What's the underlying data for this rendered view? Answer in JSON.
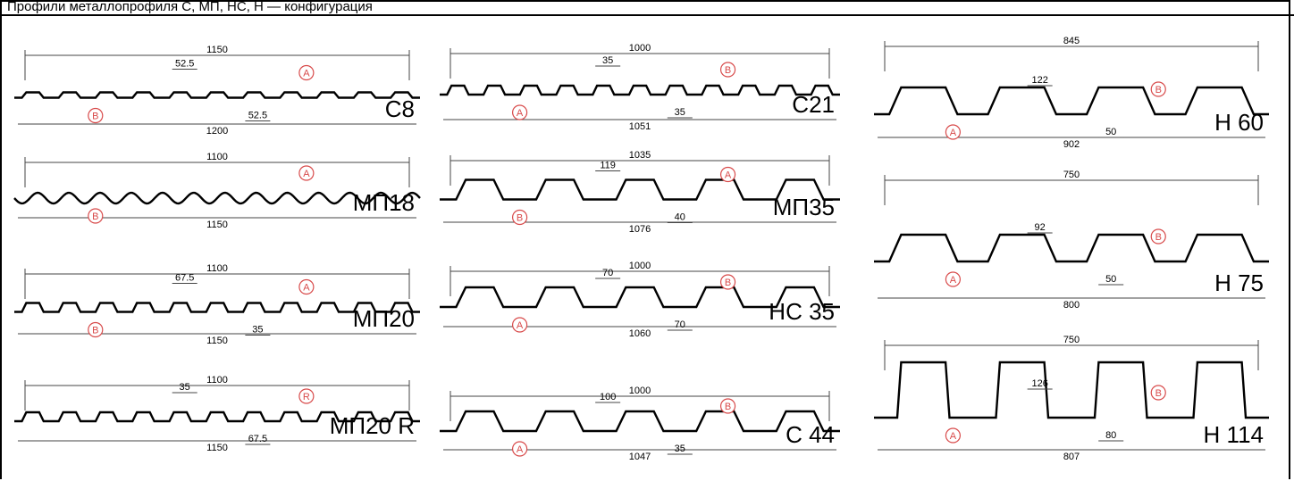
{
  "header": {
    "caption": "Профили металлопрофиля С, МП, НС, Н — конфигурация"
  },
  "colors": {
    "line": "#000000",
    "marker": "#d84a4a",
    "dim": "#444444"
  },
  "profiles": [
    {
      "name": "C8",
      "column": 0,
      "row": 0,
      "shape": "wave",
      "top_dim": "1150",
      "bottom_dim": "1200",
      "dims": [
        "52.5",
        "52.5"
      ],
      "markers": [
        "A",
        "B"
      ]
    },
    {
      "name": "МП18",
      "column": 0,
      "row": 1,
      "shape": "sine",
      "top_dim": "1100",
      "bottom_dim": "1150",
      "dims": [],
      "markers": [
        "A",
        "B"
      ]
    },
    {
      "name": "МП20",
      "column": 0,
      "row": 2,
      "shape": "trap",
      "top_dim": "1100",
      "bottom_dim": "1150",
      "dims": [
        "67.5",
        "35"
      ],
      "markers": [
        "A",
        "B"
      ]
    },
    {
      "name": "МП20 R",
      "column": 0,
      "row": 3,
      "shape": "trap",
      "top_dim": "1100",
      "bottom_dim": "1150",
      "dims": [
        "35",
        "67.5"
      ],
      "markers": [
        "R"
      ]
    },
    {
      "name": "C21",
      "column": 1,
      "row": 0,
      "shape": "trap",
      "top_dim": "1000",
      "bottom_dim": "1051",
      "dims": [
        "35",
        "35"
      ],
      "markers": [
        "B",
        "A"
      ]
    },
    {
      "name": "МП35",
      "column": 1,
      "row": 1,
      "shape": "trapwide",
      "top_dim": "1035",
      "bottom_dim": "1076",
      "dims": [
        "119",
        "40"
      ],
      "markers": [
        "A",
        "B"
      ]
    },
    {
      "name": "HC 35",
      "column": 1,
      "row": 2,
      "shape": "trapwide",
      "top_dim": "1000",
      "bottom_dim": "1060",
      "dims": [
        "70",
        "70"
      ],
      "markers": [
        "B",
        "A"
      ]
    },
    {
      "name": "C 44",
      "column": 1,
      "row": 3,
      "shape": "trapwide",
      "top_dim": "1000",
      "bottom_dim": "1047",
      "dims": [
        "100",
        "35"
      ],
      "markers": [
        "B",
        "A"
      ]
    },
    {
      "name": "H 60",
      "column": 2,
      "row": 0,
      "shape": "tall",
      "top_dim": "845",
      "bottom_dim": "902",
      "dims": [
        "122",
        "50"
      ],
      "markers": [
        "B",
        "A"
      ]
    },
    {
      "name": "H 75",
      "column": 2,
      "row": 1,
      "shape": "tall",
      "top_dim": "750",
      "bottom_dim": "800",
      "dims": [
        "92",
        "50"
      ],
      "markers": [
        "B",
        "A"
      ]
    },
    {
      "name": "H 114",
      "column": 2,
      "row": 2,
      "shape": "taller",
      "top_dim": "750",
      "bottom_dim": "807",
      "dims": [
        "126",
        "80"
      ],
      "markers": [
        "B",
        "A"
      ]
    }
  ]
}
